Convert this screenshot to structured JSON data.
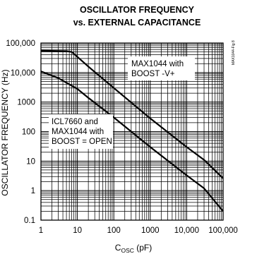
{
  "chart_data": {
    "type": "line",
    "title_line1": "OSCILLATOR FREQUENCY",
    "title_line2": "vs. EXTERNAL CAPACITANCE",
    "xlabel_main": "C",
    "xlabel_sub": "OSC",
    "xlabel_unit": " (pF)",
    "ylabel": "OSCILLATOR FREQUENCY (Hz)",
    "figure_id": "MAX1044-Fig 8",
    "x_scale": "log",
    "y_scale": "log",
    "xlim": [
      1,
      100000
    ],
    "ylim": [
      0.1,
      100000
    ],
    "grid": true,
    "x_ticks": [
      {
        "value": 1,
        "label": "1"
      },
      {
        "value": 10,
        "label": "10"
      },
      {
        "value": 100,
        "label": "100"
      },
      {
        "value": 1000,
        "label": "1000"
      },
      {
        "value": 10000,
        "label": "10,000"
      },
      {
        "value": 100000,
        "label": "100,000"
      }
    ],
    "y_ticks": [
      {
        "value": 0.1,
        "label": "0.1"
      },
      {
        "value": 1,
        "label": "1"
      },
      {
        "value": 10,
        "label": "10"
      },
      {
        "value": 100,
        "label": "100"
      },
      {
        "value": 1000,
        "label": "1000"
      },
      {
        "value": 10000,
        "label": "10,000"
      },
      {
        "value": 100000,
        "label": "100,000"
      }
    ],
    "series": [
      {
        "label_lines": [
          "MAX1044 with",
          "BOOST -V+"
        ],
        "x": [
          1,
          5,
          7,
          10,
          20,
          100,
          1000,
          10000,
          30000,
          100000
        ],
        "y": [
          55000,
          53000,
          50000,
          34000,
          16000,
          3000,
          280,
          30,
          11,
          2.6
        ]
      },
      {
        "label_lines": [
          "ICL7660 and",
          "MAX1044 with",
          "BOOST = OPEN"
        ],
        "x": [
          1,
          3,
          10,
          20,
          100,
          1000,
          10000,
          30000,
          100000
        ],
        "y": [
          11000,
          6500,
          2800,
          1400,
          300,
          30,
          3.3,
          1.2,
          0.2
        ]
      }
    ]
  }
}
